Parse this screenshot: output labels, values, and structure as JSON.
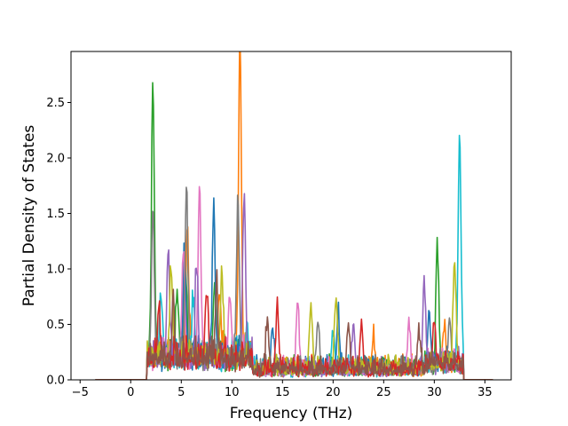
{
  "chart_data": {
    "type": "line",
    "title": "",
    "xlabel": "Frequency (THz)",
    "ylabel": "Partial Density of States",
    "xlim": [
      -5.9,
      37.6
    ],
    "ylim": [
      0.0,
      2.96
    ],
    "xticks": [
      -5,
      0,
      5,
      10,
      15,
      20,
      25,
      30,
      35
    ],
    "yticks": [
      0.0,
      0.5,
      1.0,
      1.5,
      2.0,
      2.5
    ],
    "xtick_labels": [
      "−5",
      "0",
      "5",
      "10",
      "15",
      "20",
      "25",
      "30",
      "35"
    ],
    "ytick_labels": [
      "0.0",
      "0.5",
      "1.0",
      "1.5",
      "2.0",
      "2.5"
    ],
    "grid": false,
    "legend": "none",
    "series_count_note_hidden": "",
    "series": [
      {
        "color": "#2ca02c",
        "peaks": [
          [
            2.2,
            2.49
          ],
          [
            4.6,
            0.6
          ],
          [
            5.4,
            0.95
          ],
          [
            8.3,
            0.7
          ],
          [
            30.3,
            1.05
          ]
        ]
      },
      {
        "color": "#ff7f0e",
        "peaks": [
          [
            5.6,
            1.15
          ],
          [
            8.8,
            0.55
          ],
          [
            10.8,
            2.83
          ],
          [
            24.0,
            0.3
          ],
          [
            31.0,
            0.4
          ]
        ]
      },
      {
        "color": "#17becf",
        "peaks": [
          [
            3.0,
            0.55
          ],
          [
            6.2,
            0.5
          ],
          [
            11.5,
            0.3
          ],
          [
            20.0,
            0.35
          ],
          [
            32.5,
            2.06
          ]
        ]
      },
      {
        "color": "#1f77b4",
        "peaks": [
          [
            5.3,
            0.9
          ],
          [
            8.2,
            1.37
          ],
          [
            14.0,
            0.4
          ],
          [
            20.5,
            0.5
          ],
          [
            29.5,
            0.45
          ]
        ]
      },
      {
        "color": "#e377c2",
        "peaks": [
          [
            5.2,
            1.0
          ],
          [
            6.8,
            1.52
          ],
          [
            9.8,
            0.6
          ],
          [
            16.5,
            0.64
          ],
          [
            27.5,
            0.45
          ]
        ]
      },
      {
        "color": "#9467bd",
        "peaks": [
          [
            3.7,
            1.03
          ],
          [
            6.5,
            0.8
          ],
          [
            11.2,
            1.5
          ],
          [
            22.0,
            0.4
          ],
          [
            29.0,
            0.8
          ]
        ]
      },
      {
        "color": "#7f7f7f",
        "peaks": [
          [
            2.2,
            1.26
          ],
          [
            5.5,
            1.44
          ],
          [
            10.6,
            1.43
          ],
          [
            18.5,
            0.45
          ],
          [
            31.5,
            0.35
          ]
        ]
      },
      {
        "color": "#bcbd22",
        "peaks": [
          [
            4.0,
            0.8
          ],
          [
            9.0,
            0.75
          ],
          [
            17.8,
            0.6
          ],
          [
            20.3,
            0.67
          ],
          [
            32.0,
            0.93
          ]
        ]
      },
      {
        "color": "#d62728",
        "peaks": [
          [
            2.8,
            0.45
          ],
          [
            7.5,
            0.65
          ],
          [
            14.5,
            0.59
          ],
          [
            22.8,
            0.45
          ],
          [
            30.0,
            0.4
          ]
        ]
      },
      {
        "color": "#8c564b",
        "peaks": [
          [
            4.2,
            0.5
          ],
          [
            8.5,
            0.6
          ],
          [
            13.5,
            0.45
          ],
          [
            21.5,
            0.45
          ],
          [
            28.5,
            0.35
          ]
        ]
      }
    ]
  }
}
